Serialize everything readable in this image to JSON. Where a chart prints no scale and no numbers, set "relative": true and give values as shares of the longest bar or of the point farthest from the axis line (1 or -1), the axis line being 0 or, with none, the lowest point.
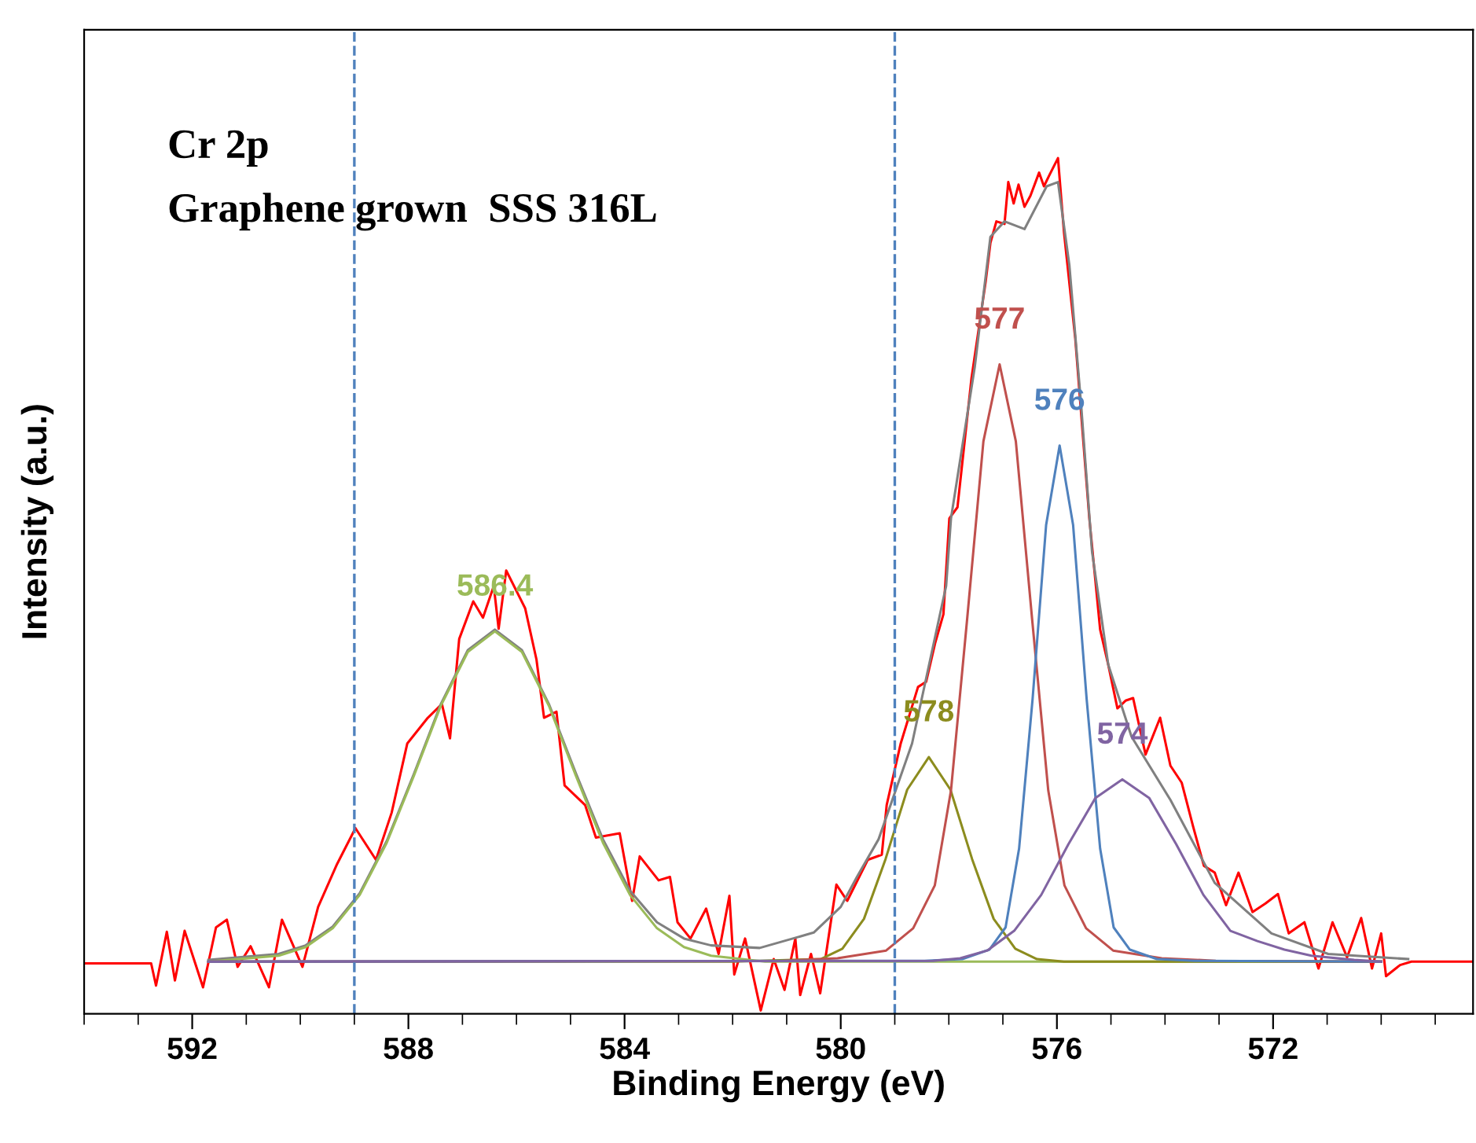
{
  "chart_data": {
    "type": "line",
    "relative": true,
    "xlabel": "Binding Energy (eV)",
    "ylabel": "Intensity (a.u.)",
    "annotations": [
      "Cr 2p",
      "Graphene grown  SSS 316L"
    ],
    "xlim": [
      594.0,
      568.3
    ],
    "xticks": [
      592,
      588,
      584,
      580,
      576,
      572
    ],
    "ref_lines": [
      {
        "axis": "x",
        "value": 589,
        "color": "#4f81bd",
        "line_style": "dashed"
      },
      {
        "axis": "x",
        "value": 579,
        "color": "#4f81bd",
        "line_style": "dashed"
      }
    ],
    "series": [
      {
        "color": "#ff0000",
        "x": [
          594.0,
          592.76,
          592.67,
          592.47,
          592.32,
          592.14,
          591.8,
          591.56,
          591.36,
          591.16,
          590.92,
          590.58,
          590.34,
          589.96,
          589.67,
          589.32,
          588.98,
          588.6,
          588.31,
          588.02,
          587.64,
          587.38,
          587.23,
          587.06,
          586.8,
          586.62,
          586.42,
          586.33,
          586.19,
          585.84,
          585.63,
          585.49,
          585.26,
          585.11,
          584.73,
          584.53,
          584.09,
          583.86,
          583.72,
          583.37,
          583.16,
          583.02,
          582.78,
          582.49,
          582.26,
          582.06,
          581.97,
          581.77,
          581.48,
          581.24,
          581.04,
          580.84,
          580.75,
          580.55,
          580.38,
          580.08,
          579.88,
          579.5,
          579.24,
          579.15,
          578.89,
          578.57,
          578.42,
          578.25,
          578.1,
          577.99,
          577.84,
          577.58,
          577.32,
          577.23,
          577.12,
          576.97,
          576.9,
          576.8,
          576.71,
          576.6,
          576.49,
          576.33,
          576.24,
          576.14,
          575.98,
          575.87,
          575.66,
          575.4,
          575.2,
          575.05,
          574.88,
          574.73,
          574.59,
          574.36,
          574.09,
          573.9,
          573.69,
          573.48,
          573.28,
          573.08,
          572.87,
          572.64,
          572.38,
          572.14,
          571.91,
          571.71,
          571.42,
          571.16,
          570.9,
          570.63,
          570.37,
          570.17,
          570.0,
          569.91,
          569.65,
          569.44,
          568.3
        ],
        "values": [
          0.059,
          0.059,
          0.033,
          0.096,
          0.039,
          0.097,
          0.031,
          0.101,
          0.11,
          0.055,
          0.079,
          0.031,
          0.11,
          0.055,
          0.125,
          0.175,
          0.217,
          0.18,
          0.235,
          0.316,
          0.346,
          0.362,
          0.322,
          0.438,
          0.482,
          0.463,
          0.5,
          0.45,
          0.518,
          0.474,
          0.414,
          0.346,
          0.353,
          0.267,
          0.244,
          0.206,
          0.211,
          0.132,
          0.184,
          0.156,
          0.16,
          0.107,
          0.088,
          0.123,
          0.07,
          0.138,
          0.046,
          0.088,
          0.004,
          0.064,
          0.028,
          0.088,
          0.022,
          0.07,
          0.024,
          0.151,
          0.132,
          0.18,
          0.186,
          0.244,
          0.316,
          0.382,
          0.388,
          0.434,
          0.467,
          0.579,
          0.592,
          0.743,
          0.855,
          0.901,
          0.926,
          0.923,
          0.972,
          0.947,
          0.969,
          0.943,
          0.956,
          0.983,
          0.967,
          0.98,
          1.0,
          0.914,
          0.789,
          0.579,
          0.449,
          0.408,
          0.357,
          0.366,
          0.369,
          0.303,
          0.346,
          0.29,
          0.27,
          0.219,
          0.173,
          0.165,
          0.127,
          0.165,
          0.119,
          0.129,
          0.14,
          0.094,
          0.107,
          0.053,
          0.107,
          0.066,
          0.112,
          0.053,
          0.094,
          0.044,
          0.057,
          0.061,
          0.061
        ]
      },
      {
        "color": "#808080",
        "x": [
          591.7,
          590.4,
          589.9,
          589.4,
          588.9,
          588.4,
          587.9,
          587.4,
          586.9,
          586.4,
          585.9,
          585.4,
          584.9,
          584.4,
          583.9,
          583.4,
          582.9,
          582.4,
          581.5,
          580.5,
          580.0,
          579.7,
          579.3,
          578.68,
          578.05,
          577.96,
          577.52,
          577.23,
          576.97,
          576.6,
          576.19,
          575.98,
          575.77,
          575.55,
          575.35,
          575.05,
          574.62,
          573.9,
          573.08,
          572.03,
          570.98,
          569.5
        ],
        "values": [
          0.063,
          0.07,
          0.08,
          0.102,
          0.141,
          0.202,
          0.28,
          0.362,
          0.425,
          0.449,
          0.425,
          0.362,
          0.281,
          0.204,
          0.144,
          0.107,
          0.088,
          0.08,
          0.077,
          0.095,
          0.125,
          0.16,
          0.204,
          0.316,
          0.5,
          0.579,
          0.756,
          0.908,
          0.926,
          0.917,
          0.967,
          0.972,
          0.875,
          0.71,
          0.54,
          0.408,
          0.324,
          0.25,
          0.153,
          0.094,
          0.07,
          0.064
        ]
      },
      {
        "name": "586.4",
        "color": "#9bbb59",
        "x": [
          591.7,
          590.4,
          589.9,
          589.4,
          588.9,
          588.4,
          587.9,
          587.4,
          586.9,
          586.4,
          585.9,
          585.4,
          584.9,
          584.4,
          583.9,
          583.4,
          582.9,
          582.4,
          581.4,
          570.0
        ],
        "values": [
          0.061,
          0.068,
          0.078,
          0.1,
          0.139,
          0.2,
          0.278,
          0.36,
          0.423,
          0.447,
          0.423,
          0.36,
          0.278,
          0.2,
          0.139,
          0.1,
          0.078,
          0.068,
          0.061,
          0.061
        ]
      },
      {
        "name": "578",
        "color": "#8c8c1e",
        "x": [
          591.7,
          582.0,
          580.37,
          579.97,
          579.57,
          579.17,
          578.77,
          578.37,
          577.97,
          577.57,
          577.17,
          576.77,
          576.37,
          575.87,
          570.0
        ],
        "values": [
          0.061,
          0.061,
          0.064,
          0.076,
          0.111,
          0.181,
          0.262,
          0.3,
          0.262,
          0.181,
          0.111,
          0.076,
          0.064,
          0.061,
          0.061
        ]
      },
      {
        "name": "577",
        "color": "#c0504d",
        "x": [
          591.7,
          581.06,
          580.06,
          579.16,
          578.66,
          578.26,
          577.96,
          577.66,
          577.36,
          577.06,
          576.76,
          576.46,
          576.16,
          575.86,
          575.46,
          574.96,
          574.06,
          573.06,
          570.0
        ],
        "values": [
          0.061,
          0.062,
          0.065,
          0.074,
          0.1,
          0.15,
          0.261,
          0.462,
          0.669,
          0.759,
          0.669,
          0.462,
          0.261,
          0.15,
          0.1,
          0.074,
          0.065,
          0.062,
          0.061
        ]
      },
      {
        "name": "576",
        "color": "#4f81bd",
        "x": [
          591.7,
          578.45,
          577.75,
          577.25,
          576.95,
          576.7,
          576.45,
          576.2,
          575.95,
          575.7,
          575.45,
          575.2,
          574.95,
          574.65,
          574.15,
          573.45,
          570.0
        ],
        "values": [
          0.061,
          0.062,
          0.064,
          0.075,
          0.101,
          0.193,
          0.368,
          0.571,
          0.664,
          0.571,
          0.368,
          0.193,
          0.101,
          0.075,
          0.064,
          0.062,
          0.061
        ]
      },
      {
        "name": "574",
        "color": "#8064a2",
        "x": [
          591.7,
          578.29,
          577.79,
          577.29,
          576.79,
          576.29,
          575.79,
          575.29,
          574.79,
          574.29,
          573.79,
          573.29,
          572.79,
          572.29,
          571.79,
          571.29,
          570.5,
          570.0
        ],
        "values": [
          0.061,
          0.062,
          0.065,
          0.074,
          0.097,
          0.139,
          0.198,
          0.252,
          0.274,
          0.252,
          0.198,
          0.139,
          0.097,
          0.085,
          0.075,
          0.068,
          0.063,
          0.061
        ]
      }
    ]
  }
}
